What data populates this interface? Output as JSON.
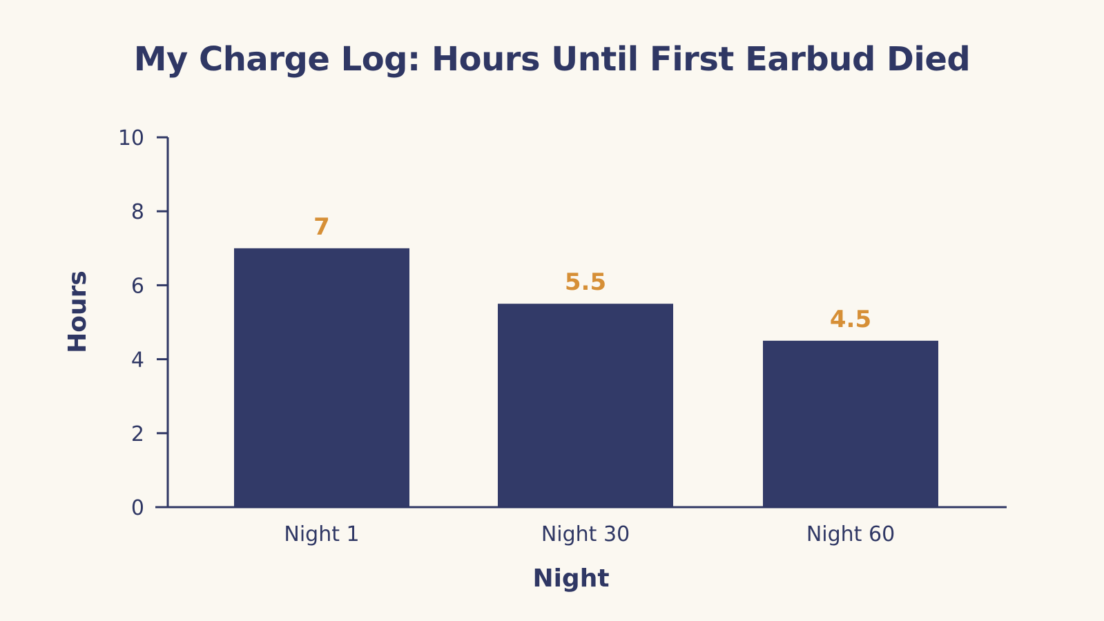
{
  "chart_data": {
    "type": "bar",
    "title": "My Charge Log: Hours Until First Earbud Died",
    "xlabel": "Night",
    "ylabel": "Hours",
    "categories": [
      "Night 1",
      "Night 30",
      "Night 60"
    ],
    "values": [
      7,
      5.5,
      4.5
    ],
    "data_labels": [
      "7",
      "5.5",
      "4.5"
    ],
    "ylim": [
      0,
      10
    ],
    "yticks": [
      0,
      2,
      4,
      6,
      8,
      10
    ],
    "grid": false,
    "legend": "none",
    "colors": {
      "bar": "#323a68",
      "axis": "#2f3764",
      "data_label": "#d68f36",
      "background": "#fbf8f1"
    }
  }
}
